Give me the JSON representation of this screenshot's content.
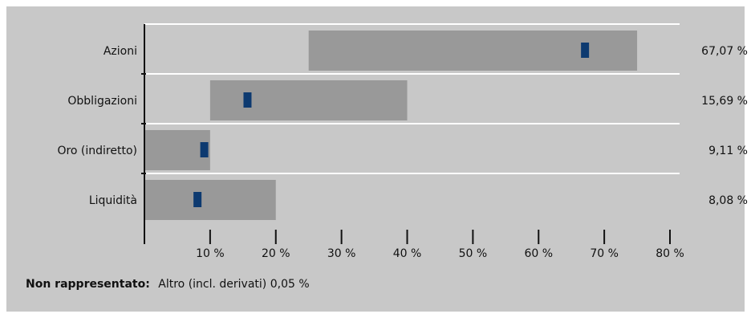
{
  "chart_data": {
    "type": "bar",
    "orientation": "horizontal",
    "title": "",
    "xlabel": "",
    "ylabel": "",
    "xlim": [
      0,
      80
    ],
    "x_ticks": [
      "10 %",
      "20 %",
      "30 %",
      "40 %",
      "50 %",
      "60 %",
      "70 %",
      "80 %"
    ],
    "categories": [
      "Azioni",
      "Obbligazioni",
      "Oro (indiretto)",
      "Liquidità"
    ],
    "range_min": [
      25,
      10,
      0,
      0
    ],
    "range_max": [
      75,
      40,
      10,
      20
    ],
    "values": [
      67.07,
      15.69,
      9.11,
      8.08
    ],
    "value_labels": [
      "67,07 %",
      "15,69 %",
      "9,11 %",
      "8,08 %"
    ],
    "grid": false,
    "colors": {
      "background": "#c8c8c8",
      "range_bar": "#999999",
      "marker": "#0d3a70",
      "separator": "#ffffff",
      "axis": "#111111"
    }
  },
  "footnote": {
    "label": "Non rappresentato:",
    "text": "Altro (incl. derivati) 0,05 %"
  }
}
